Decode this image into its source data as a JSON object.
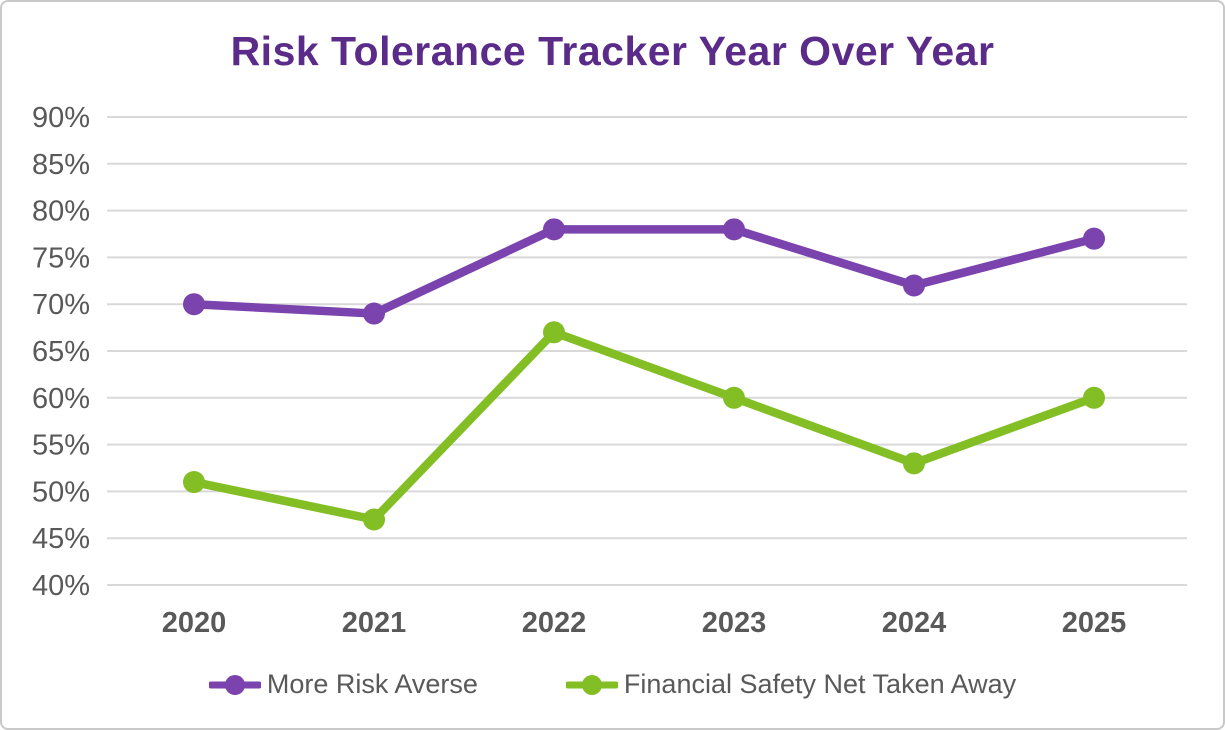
{
  "frame": {
    "background": "#ffffff",
    "border_color": "#c9c9c9"
  },
  "chart_data": {
    "type": "line",
    "title": "Risk Tolerance Tracker Year Over Year",
    "title_color": "#5b2b8a",
    "categories": [
      "2020",
      "2021",
      "2022",
      "2023",
      "2024",
      "2025"
    ],
    "series": [
      {
        "name": "More Risk Averse",
        "color": "#7a43ad",
        "values": [
          70,
          69,
          78,
          78,
          72,
          77
        ]
      },
      {
        "name": "Financial Safety Net Taken Away",
        "color": "#82be24",
        "values": [
          51,
          47,
          67,
          60,
          53,
          60
        ]
      }
    ],
    "ylim": [
      40,
      90
    ],
    "ytick_values": [
      90,
      85,
      80,
      75,
      70,
      65,
      60,
      55,
      50,
      45,
      40
    ],
    "ytick_labels": [
      "90%",
      "85%",
      "80%",
      "75%",
      "70%",
      "65%",
      "60%",
      "55%",
      "50%",
      "45%",
      "40%"
    ],
    "xlabel": "",
    "ylabel": "",
    "grid": true,
    "grid_color": "#d9d9d9",
    "axis_text_color": "#595959",
    "legend_position": "bottom"
  }
}
